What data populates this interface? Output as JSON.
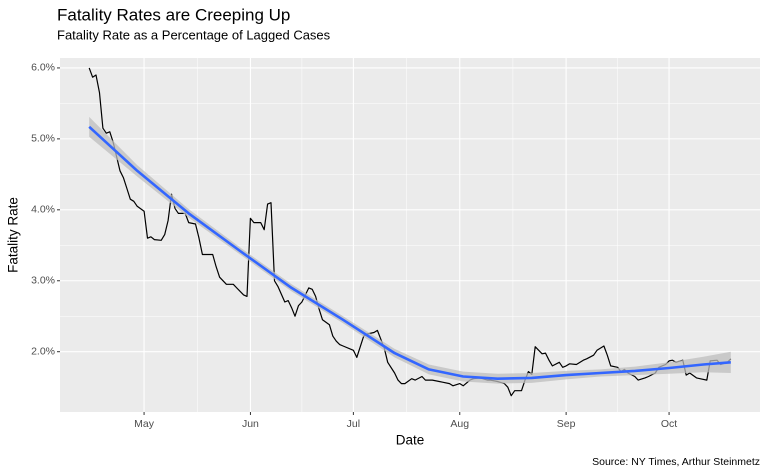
{
  "chart_data": {
    "type": "line",
    "title": "Fatality Rates are Creeping Up",
    "subtitle": "Fatality Rate as a Percentage of Lagged Cases",
    "x_label": "Date",
    "y_label": "Fatality Rate",
    "caption": "Source: NY Times, Arthur Steinmetz",
    "xlim": [
      97.5,
      301.5
    ],
    "xticks": [
      {
        "value": 122,
        "label": "May"
      },
      {
        "value": 153,
        "label": "Jun"
      },
      {
        "value": 183,
        "label": "Jul"
      },
      {
        "value": 214,
        "label": "Aug"
      },
      {
        "value": 245,
        "label": "Sep"
      },
      {
        "value": 275,
        "label": "Oct"
      }
    ],
    "ylim": [
      1.15,
      6.14
    ],
    "yticks": [
      {
        "value": 2,
        "label": "2.0%"
      },
      {
        "value": 3,
        "label": "3.0%"
      },
      {
        "value": 4,
        "label": "4.0%"
      },
      {
        "value": 5,
        "label": "5.0%"
      },
      {
        "value": 6,
        "label": "6.0%"
      }
    ],
    "grid": true,
    "background": "#ebebeb",
    "series": [
      {
        "color": "#000000",
        "x": [
          106,
          107,
          108,
          109,
          110,
          111,
          112,
          113,
          114,
          115,
          116,
          117,
          118,
          119,
          120,
          122,
          123,
          124,
          125,
          127,
          128,
          129,
          130,
          131,
          132,
          134,
          135,
          137,
          138,
          139,
          142,
          143,
          144,
          146,
          148,
          149,
          151,
          152,
          153,
          154,
          156,
          157,
          158,
          159,
          160,
          161,
          163,
          164,
          165,
          166,
          167,
          168,
          170,
          171,
          172,
          173,
          174,
          176,
          177,
          178,
          179,
          180,
          183,
          184,
          186,
          187,
          189,
          190,
          192,
          193,
          195,
          196,
          197,
          198,
          200,
          201,
          203,
          204,
          206,
          208,
          209,
          211,
          212,
          214,
          215,
          217,
          218,
          220,
          222,
          223,
          225,
          227,
          228,
          229,
          230,
          232,
          233,
          234,
          235,
          236,
          238,
          239,
          240,
          241,
          243,
          244,
          245,
          246,
          248,
          250,
          251,
          253,
          254,
          256,
          257,
          258,
          260,
          261,
          262,
          263,
          265,
          266,
          268,
          269,
          271,
          272,
          274,
          275,
          276,
          277,
          279,
          280,
          281,
          283,
          284,
          286,
          287,
          289,
          290,
          292,
          293
        ],
        "values": [
          6.0,
          5.87,
          5.9,
          5.65,
          5.15,
          5.08,
          5.1,
          4.95,
          4.75,
          4.55,
          4.45,
          4.3,
          4.15,
          4.12,
          4.05,
          3.98,
          3.6,
          3.62,
          3.58,
          3.57,
          3.65,
          3.85,
          4.22,
          4.02,
          3.95,
          3.95,
          3.82,
          3.8,
          3.6,
          3.37,
          3.37,
          3.2,
          3.05,
          2.95,
          2.95,
          2.9,
          2.8,
          2.78,
          3.88,
          3.82,
          3.82,
          3.72,
          4.08,
          4.1,
          3.0,
          2.92,
          2.7,
          2.72,
          2.62,
          2.5,
          2.65,
          2.7,
          2.9,
          2.88,
          2.78,
          2.6,
          2.45,
          2.38,
          2.22,
          2.15,
          2.1,
          2.08,
          2.02,
          1.92,
          2.22,
          2.25,
          2.27,
          2.3,
          2.05,
          1.85,
          1.7,
          1.6,
          1.55,
          1.55,
          1.62,
          1.6,
          1.65,
          1.6,
          1.6,
          1.58,
          1.57,
          1.55,
          1.52,
          1.55,
          1.52,
          1.6,
          1.62,
          1.63,
          1.6,
          1.6,
          1.58,
          1.55,
          1.5,
          1.38,
          1.45,
          1.45,
          1.6,
          1.72,
          1.68,
          2.07,
          1.97,
          1.98,
          1.88,
          1.8,
          1.85,
          1.78,
          1.8,
          1.83,
          1.82,
          1.88,
          1.9,
          1.95,
          2.02,
          2.08,
          1.95,
          1.8,
          1.78,
          1.72,
          1.75,
          1.7,
          1.65,
          1.6,
          1.63,
          1.65,
          1.7,
          1.78,
          1.82,
          1.87,
          1.88,
          1.85,
          1.88,
          1.67,
          1.7,
          1.63,
          1.62,
          1.6,
          1.87,
          1.88,
          1.82,
          1.85,
          1.9
        ]
      },
      {
        "color": "#3366ff",
        "band_color": "#bdbdbd",
        "x": [
          106,
          120,
          135,
          150,
          165,
          180,
          195,
          205,
          215,
          225,
          235,
          245,
          255,
          265,
          275,
          285,
          293
        ],
        "values": [
          5.17,
          4.55,
          3.95,
          3.42,
          2.9,
          2.45,
          1.98,
          1.75,
          1.65,
          1.62,
          1.63,
          1.67,
          1.7,
          1.73,
          1.77,
          1.82,
          1.85
        ],
        "lower": [
          5.03,
          4.47,
          3.89,
          3.37,
          2.85,
          2.4,
          1.92,
          1.68,
          1.58,
          1.55,
          1.56,
          1.61,
          1.65,
          1.67,
          1.69,
          1.71,
          1.7
        ],
        "upper": [
          5.31,
          4.63,
          4.01,
          3.47,
          2.95,
          2.5,
          2.04,
          1.82,
          1.72,
          1.69,
          1.7,
          1.73,
          1.75,
          1.79,
          1.85,
          1.93,
          2.0
        ]
      }
    ]
  }
}
